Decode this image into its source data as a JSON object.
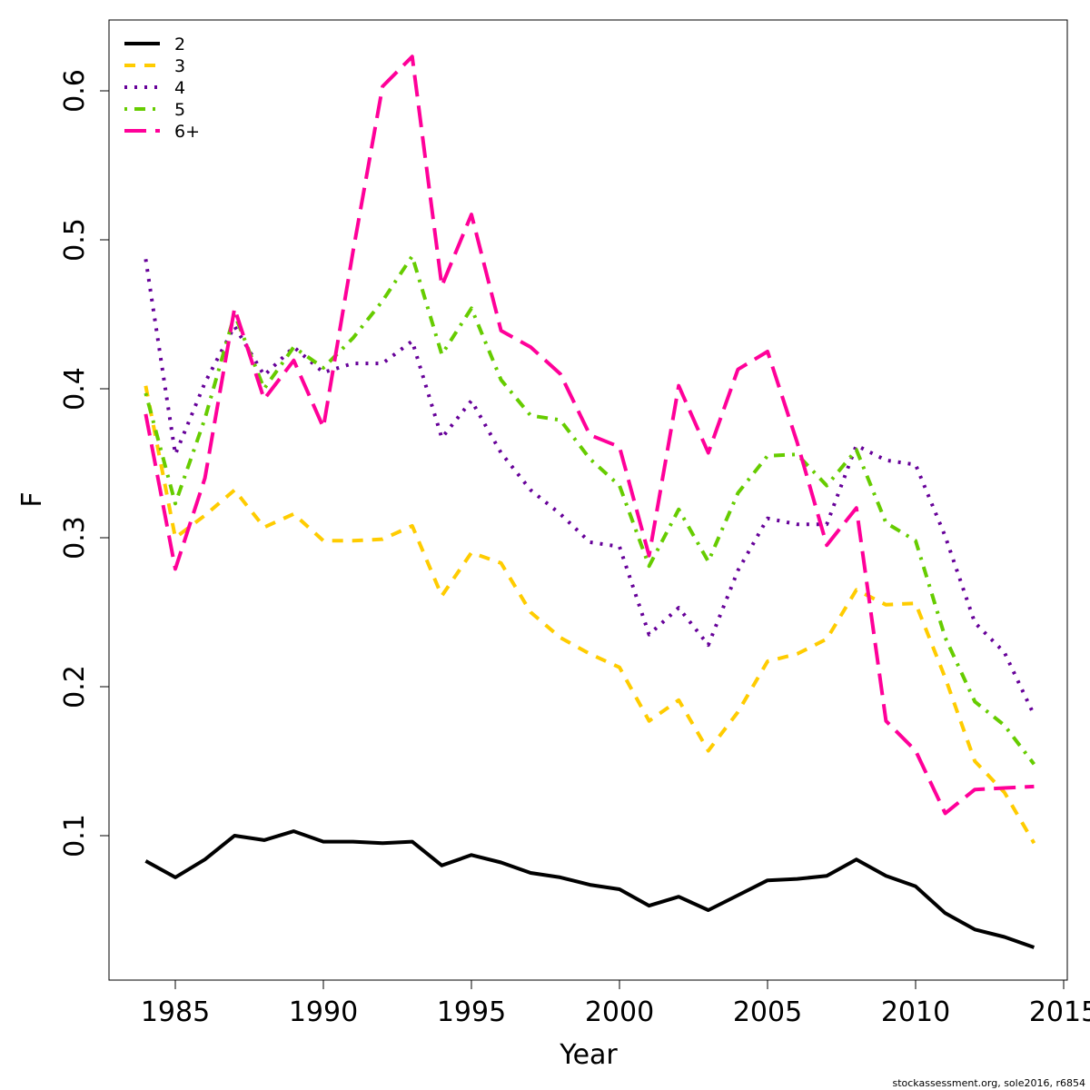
{
  "chart_data": {
    "type": "line",
    "title": "",
    "xlabel": "Year",
    "ylabel": "F",
    "xlim": [
      1983,
      2015
    ],
    "ylim": [
      0.01,
      0.645
    ],
    "xticks": [
      1985,
      1990,
      1995,
      2000,
      2005,
      2010,
      2015
    ],
    "yticks": [
      0.1,
      0.2,
      0.3,
      0.4,
      0.5,
      0.6
    ],
    "legend_position": "top-left",
    "x": [
      1984,
      1985,
      1986,
      1987,
      1988,
      1989,
      1990,
      1991,
      1992,
      1993,
      1994,
      1995,
      1996,
      1997,
      1998,
      1999,
      2000,
      2001,
      2002,
      2003,
      2004,
      2005,
      2006,
      2007,
      2008,
      2009,
      2010,
      2011,
      2012,
      2013,
      2014
    ],
    "series": [
      {
        "name": "2",
        "color": "#000000",
        "dash": "solid",
        "values": [
          0.083,
          0.072,
          0.084,
          0.1,
          0.097,
          0.103,
          0.096,
          0.096,
          0.095,
          0.096,
          0.08,
          0.087,
          0.082,
          0.075,
          0.072,
          0.067,
          0.064,
          0.053,
          0.059,
          0.05,
          0.06,
          0.07,
          0.071,
          0.073,
          0.084,
          0.073,
          0.066,
          0.048,
          0.037,
          0.032,
          0.025
        ]
      },
      {
        "name": "3",
        "color": "#FFCC00",
        "dash": "dashed",
        "values": [
          0.402,
          0.3,
          0.315,
          0.332,
          0.307,
          0.316,
          0.298,
          0.298,
          0.299,
          0.308,
          0.261,
          0.29,
          0.283,
          0.25,
          0.233,
          0.222,
          0.213,
          0.177,
          0.191,
          0.157,
          0.183,
          0.217,
          0.222,
          0.232,
          0.265,
          0.255,
          0.256,
          0.206,
          0.15,
          0.129,
          0.095
        ]
      },
      {
        "name": "4",
        "color": "#660099",
        "dash": "dotted",
        "values": [
          0.487,
          0.356,
          0.404,
          0.442,
          0.409,
          0.428,
          0.411,
          0.417,
          0.417,
          0.432,
          0.367,
          0.392,
          0.357,
          0.332,
          0.316,
          0.297,
          0.294,
          0.235,
          0.253,
          0.228,
          0.278,
          0.313,
          0.309,
          0.309,
          0.362,
          0.352,
          0.349,
          0.301,
          0.243,
          0.223,
          0.181
        ]
      },
      {
        "name": "5",
        "color": "#66CC00",
        "dash": "dotdash",
        "values": [
          0.397,
          0.323,
          0.38,
          0.45,
          0.4,
          0.428,
          0.414,
          0.434,
          0.459,
          0.489,
          0.423,
          0.454,
          0.406,
          0.382,
          0.379,
          0.353,
          0.335,
          0.281,
          0.319,
          0.284,
          0.33,
          0.355,
          0.356,
          0.335,
          0.359,
          0.31,
          0.298,
          0.233,
          0.19,
          0.174,
          0.148
        ]
      },
      {
        "name": "6+",
        "color": "#FF0099",
        "dash": "longdash",
        "values": [
          0.383,
          0.279,
          0.34,
          0.454,
          0.393,
          0.419,
          0.374,
          0.492,
          0.603,
          0.623,
          0.469,
          0.517,
          0.439,
          0.428,
          0.41,
          0.369,
          0.361,
          0.288,
          0.402,
          0.357,
          0.413,
          0.425,
          0.364,
          0.295,
          0.32,
          0.177,
          0.157,
          0.115,
          0.131,
          0.132,
          0.133
        ]
      }
    ]
  },
  "footer_text": "stockassessment.org, sole2016, r6854"
}
